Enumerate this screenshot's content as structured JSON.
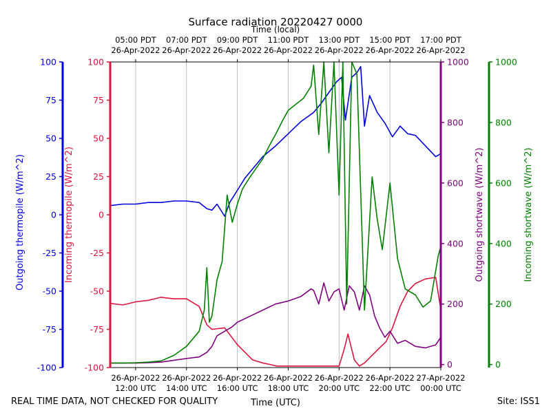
{
  "chart_data": {
    "type": "line",
    "title": "Surface radiation 20220427 0000",
    "top_axis_label": "Time (local)",
    "xlabel": "Time (UTC)",
    "footer_left": "REAL TIME DATA, NOT CHECKED FOR QUALITY",
    "footer_right": "Site: ISS1",
    "x_range_hours_utc": [
      11,
      24
    ],
    "x_ticks_utc": [
      {
        "hour": 12,
        "date": "26-Apr-2022",
        "time": "12:00 UTC"
      },
      {
        "hour": 14,
        "date": "26-Apr-2022",
        "time": "14:00 UTC"
      },
      {
        "hour": 16,
        "date": "26-Apr-2022",
        "time": "16:00 UTC"
      },
      {
        "hour": 18,
        "date": "26-Apr-2022",
        "time": "18:00 UTC"
      },
      {
        "hour": 20,
        "date": "26-Apr-2022",
        "time": "20:00 UTC"
      },
      {
        "hour": 22,
        "date": "26-Apr-2022",
        "time": "22:00 UTC"
      },
      {
        "hour": 24,
        "date": "27-Apr-2022",
        "time": "00:00 UTC"
      }
    ],
    "x_ticks_local": [
      {
        "hour": 12,
        "time": "05:00 PDT",
        "date": "26-Apr-2022"
      },
      {
        "hour": 14,
        "time": "07:00 PDT",
        "date": "26-Apr-2022"
      },
      {
        "hour": 16,
        "time": "09:00 PDT",
        "date": "26-Apr-2022"
      },
      {
        "hour": 18,
        "time": "11:00 PDT",
        "date": "26-Apr-2022"
      },
      {
        "hour": 20,
        "time": "13:00 PDT",
        "date": "26-Apr-2022"
      },
      {
        "hour": 22,
        "time": "15:00 PDT",
        "date": "26-Apr-2022"
      },
      {
        "hour": 24,
        "time": "17:00 PDT",
        "date": "26-Apr-2022"
      }
    ],
    "y_axes": [
      {
        "id": "out_thermo",
        "label": "Outgoing thermopile (W/m^2)",
        "color": "#0000dd",
        "ylim": [
          -100,
          100
        ],
        "ticks": [
          -100,
          -75,
          -50,
          -25,
          0,
          25,
          50,
          75,
          100
        ]
      },
      {
        "id": "in_thermo",
        "label": "Incoming thermopile (W/m^2)",
        "color": "#dc143c",
        "ylim": [
          -100,
          100
        ],
        "ticks": [
          -100,
          -75,
          -50,
          -25,
          0,
          25,
          50,
          75,
          100
        ]
      },
      {
        "id": "out_sw",
        "label": "Outgoing shortwave (W/m^2)",
        "color": "#800080",
        "ylim": [
          -10,
          1000
        ],
        "ticks": [
          0,
          200,
          400,
          600,
          800,
          1000
        ]
      },
      {
        "id": "in_sw",
        "label": "Incoming shortwave (W/m^2)",
        "color": "#008000",
        "ylim": [
          -10,
          1000
        ],
        "ticks": [
          0,
          200,
          400,
          600,
          800,
          1000
        ]
      }
    ],
    "series": [
      {
        "name": "Outgoing thermopile",
        "axis": "out_thermo",
        "color": "#0000dd",
        "x": [
          11.0,
          11.5,
          12.0,
          12.5,
          13.0,
          13.5,
          14.0,
          14.5,
          14.8,
          15.0,
          15.2,
          15.5,
          15.7,
          16.0,
          16.3,
          16.6,
          17.0,
          17.5,
          18.0,
          18.5,
          19.0,
          19.3,
          19.6,
          19.9,
          20.1,
          20.25,
          20.5,
          20.7,
          20.85,
          21.0,
          21.2,
          21.5,
          21.8,
          22.1,
          22.4,
          22.7,
          23.0,
          23.4,
          23.8,
          24.0
        ],
        "y": [
          6,
          7,
          7,
          8,
          8,
          9,
          9,
          8,
          4,
          3,
          7,
          -1,
          8,
          16,
          24,
          30,
          38,
          45,
          53,
          61,
          67,
          73,
          80,
          87,
          90,
          62,
          90,
          93,
          97,
          58,
          78,
          67,
          60,
          51,
          58,
          53,
          52,
          45,
          38,
          40
        ]
      },
      {
        "name": "Incoming thermopile",
        "axis": "in_thermo",
        "color": "#dc143c",
        "x": [
          11.0,
          11.5,
          12.0,
          12.5,
          13.0,
          13.5,
          14.0,
          14.5,
          14.8,
          15.0,
          15.5,
          16.0,
          16.3,
          16.6,
          17.0,
          17.3,
          17.55,
          20.0,
          20.2,
          20.35,
          20.6,
          20.8,
          21.0,
          21.3,
          21.6,
          21.85,
          22.1,
          22.4,
          22.7,
          23.0,
          23.4,
          23.8,
          24.0
        ],
        "y": [
          -58,
          -59,
          -57,
          -56,
          -54,
          -55,
          -55,
          -60,
          -72,
          -75,
          -74,
          -85,
          -90,
          -95,
          -97,
          -98,
          -99,
          -99,
          -88,
          -78,
          -95,
          -99,
          -97,
          -92,
          -87,
          -83,
          -74,
          -60,
          -50,
          -45,
          -42,
          -41,
          -62
        ]
      },
      {
        "name": "Outgoing shortwave",
        "axis": "out_sw",
        "color": "#800080",
        "x": [
          11.0,
          11.5,
          12.0,
          12.5,
          13.0,
          13.5,
          14.0,
          14.5,
          14.8,
          15.0,
          15.2,
          15.5,
          15.8,
          16.0,
          16.5,
          17.0,
          17.5,
          18.0,
          18.5,
          18.9,
          19.0,
          19.2,
          19.4,
          19.6,
          19.8,
          20.0,
          20.2,
          20.4,
          20.6,
          20.8,
          21.0,
          21.2,
          21.4,
          21.6,
          21.8,
          22.0,
          22.3,
          22.6,
          23.0,
          23.4,
          23.8,
          24.0
        ],
        "y": [
          5,
          5,
          5,
          6,
          8,
          14,
          20,
          25,
          40,
          60,
          95,
          110,
          125,
          140,
          160,
          180,
          200,
          210,
          225,
          250,
          245,
          200,
          270,
          210,
          240,
          250,
          180,
          260,
          240,
          180,
          260,
          230,
          160,
          120,
          90,
          110,
          70,
          80,
          60,
          55,
          65,
          90
        ]
      },
      {
        "name": "Incoming shortwave",
        "axis": "in_sw",
        "color": "#008000",
        "x": [
          11.0,
          11.5,
          12.0,
          12.5,
          13.0,
          13.5,
          14.0,
          14.5,
          14.7,
          14.8,
          14.9,
          15.0,
          15.2,
          15.4,
          15.6,
          15.8,
          16.0,
          16.2,
          16.5,
          17.0,
          17.3,
          17.5,
          17.8,
          18.0,
          18.3,
          18.6,
          18.9,
          19.0,
          19.2,
          19.4,
          19.6,
          19.8,
          20.0,
          20.15,
          20.3,
          20.5,
          20.7,
          21.0,
          21.3,
          21.5,
          21.7,
          22.0,
          22.3,
          22.6,
          23.0,
          23.3,
          23.6,
          23.9,
          24.0
        ],
        "y": [
          5,
          5,
          6,
          8,
          12,
          30,
          60,
          110,
          180,
          320,
          140,
          160,
          280,
          340,
          560,
          470,
          530,
          580,
          620,
          680,
          730,
          760,
          810,
          840,
          860,
          880,
          920,
          990,
          760,
          1000,
          700,
          1000,
          560,
          1000,
          200,
          1000,
          960,
          180,
          620,
          480,
          380,
          600,
          350,
          250,
          230,
          190,
          210,
          360,
          390
        ]
      }
    ]
  }
}
